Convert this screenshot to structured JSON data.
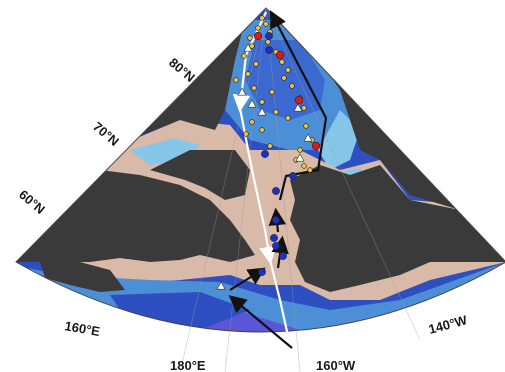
{
  "map": {
    "projection_labels": {
      "lat_80": "80°N",
      "lat_70": "70°N",
      "lat_60": "60°N",
      "lon_160e": "160°E",
      "lon_180": "180°E",
      "lon_160w": "160°W",
      "lon_140w": "140°W"
    },
    "colors": {
      "land": "#3a3a3a",
      "shelf": "#d9b9a8",
      "shallow": "#86c6e8",
      "mid": "#4d8fd6",
      "deep": "#2e4fc2",
      "abyss": "#5a56d8",
      "track_white": "#ffffff",
      "track_black": "#111111",
      "station_red": "#e01818",
      "station_blue": "#1d2fc8",
      "station_small": "#e9c23a",
      "station_triangle": "#ffffff"
    },
    "legend_items": []
  }
}
